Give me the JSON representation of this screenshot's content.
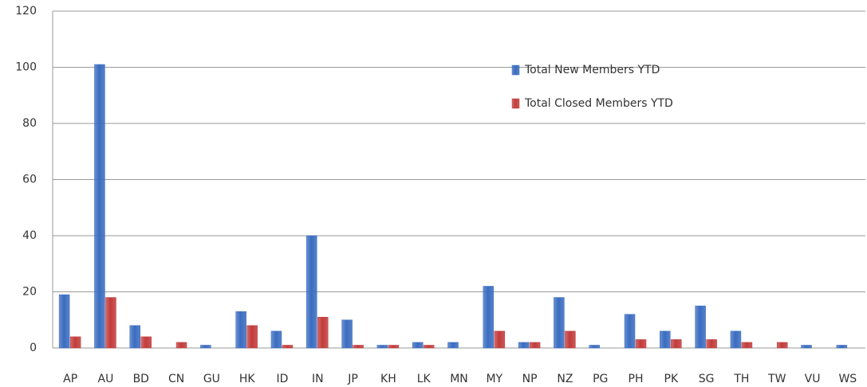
{
  "chart_data": {
    "type": "bar",
    "categories": [
      "AP",
      "AU",
      "BD",
      "CN",
      "GU",
      "HK",
      "ID",
      "IN",
      "JP",
      "KH",
      "LK",
      "MN",
      "MY",
      "NP",
      "NZ",
      "PG",
      "PH",
      "PK",
      "SG",
      "TH",
      "TW",
      "VU",
      "WS"
    ],
    "series": [
      {
        "name": "Total New Members YTD",
        "color": "#3a6cc0",
        "values": [
          19,
          101,
          8,
          0,
          1,
          13,
          6,
          40,
          10,
          1,
          2,
          2,
          22,
          2,
          18,
          1,
          12,
          6,
          15,
          6,
          0,
          1,
          1
        ]
      },
      {
        "name": "Total Closed Members YTD",
        "color": "#c23b3b",
        "values": [
          4,
          18,
          4,
          2,
          0,
          8,
          1,
          11,
          1,
          1,
          1,
          0,
          6,
          2,
          6,
          0,
          3,
          3,
          3,
          2,
          2,
          0,
          0
        ]
      }
    ],
    "ylim": [
      0,
      120
    ],
    "yticks": [
      0,
      20,
      40,
      60,
      80,
      100,
      120
    ],
    "grid": true,
    "legend": "top-right"
  }
}
